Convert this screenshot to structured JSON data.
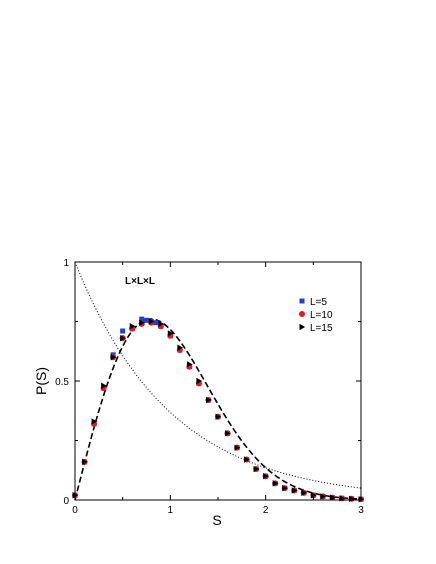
{
  "chart_data": {
    "type": "scatter",
    "title": "",
    "annotation": "L×L×L",
    "xlabel": "S",
    "ylabel": "P(S)",
    "xlim": [
      0,
      3
    ],
    "ylim": [
      0,
      1
    ],
    "xticks": [
      0,
      1,
      2,
      3
    ],
    "xtick_labels": [
      "0",
      "1",
      "2",
      "3"
    ],
    "yticks": [
      0,
      0.5,
      1
    ],
    "ytick_labels": [
      "0",
      "0.5",
      "1"
    ],
    "grid": false,
    "legend_position": "top-right",
    "series": [
      {
        "name": "L=5",
        "marker": "square",
        "color": "#1f3fd6",
        "x": [
          0.0,
          0.1,
          0.2,
          0.3,
          0.4,
          0.5,
          0.6,
          0.7,
          0.75,
          0.8,
          0.85,
          0.9,
          1.0,
          1.1,
          1.2,
          1.3,
          1.4,
          1.5,
          1.6,
          1.7,
          1.8,
          1.9,
          2.0,
          2.1,
          2.2,
          2.3,
          2.4,
          2.5,
          2.6,
          2.7,
          2.8,
          2.9,
          3.0
        ],
        "y": [
          0.02,
          0.16,
          0.32,
          0.47,
          0.61,
          0.71,
          0.72,
          0.76,
          0.755,
          0.75,
          0.745,
          0.73,
          0.69,
          0.63,
          0.56,
          0.49,
          0.42,
          0.35,
          0.28,
          0.22,
          0.17,
          0.13,
          0.1,
          0.07,
          0.05,
          0.04,
          0.03,
          0.02,
          0.015,
          0.01,
          0.007,
          0.005,
          0.003
        ]
      },
      {
        "name": "L=10",
        "marker": "circle",
        "color": "#e41a1c",
        "x": [
          0.0,
          0.1,
          0.2,
          0.3,
          0.4,
          0.5,
          0.6,
          0.7,
          0.8,
          0.9,
          1.0,
          1.1,
          1.2,
          1.3,
          1.4,
          1.5,
          1.6,
          1.7,
          1.8,
          1.9,
          2.0,
          2.1,
          2.2,
          2.3,
          2.4,
          2.5,
          2.6,
          2.7,
          2.8,
          2.9,
          3.0
        ],
        "y": [
          0.02,
          0.16,
          0.32,
          0.47,
          0.6,
          0.68,
          0.72,
          0.74,
          0.745,
          0.73,
          0.69,
          0.63,
          0.56,
          0.49,
          0.42,
          0.35,
          0.28,
          0.22,
          0.17,
          0.13,
          0.1,
          0.07,
          0.05,
          0.04,
          0.03,
          0.02,
          0.015,
          0.01,
          0.007,
          0.005,
          0.003
        ]
      },
      {
        "name": "L=15",
        "marker": "triangle-right",
        "color": "#000000",
        "x": [
          0.0,
          0.1,
          0.2,
          0.3,
          0.4,
          0.5,
          0.6,
          0.7,
          0.8,
          0.9,
          1.0,
          1.1,
          1.2,
          1.3,
          1.4,
          1.5,
          1.6,
          1.7,
          1.8,
          1.9,
          2.0,
          2.1,
          2.2,
          2.3,
          2.4,
          2.5,
          2.6,
          2.7,
          2.8,
          2.9,
          3.0
        ],
        "y": [
          0.02,
          0.16,
          0.33,
          0.48,
          0.6,
          0.68,
          0.73,
          0.745,
          0.75,
          0.74,
          0.7,
          0.64,
          0.57,
          0.5,
          0.42,
          0.35,
          0.28,
          0.22,
          0.17,
          0.13,
          0.1,
          0.07,
          0.05,
          0.04,
          0.03,
          0.02,
          0.015,
          0.01,
          0.007,
          0.005,
          0.003
        ]
      }
    ],
    "reference_curves": [
      {
        "function": "wigner_dyson_goe",
        "style": "dashed-thick",
        "color": "#000000"
      },
      {
        "function": "poisson",
        "style": "dotted",
        "color": "#000000"
      }
    ]
  }
}
